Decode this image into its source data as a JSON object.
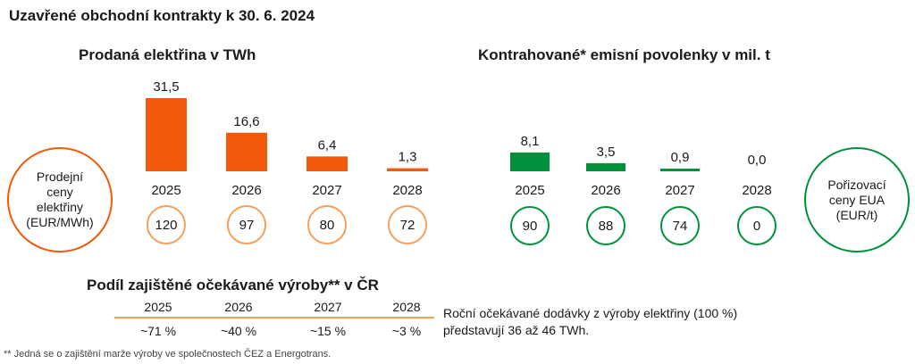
{
  "page_title": "Uzavřené obchodní kontrakty k 30. 6. 2024",
  "colors": {
    "electricity": "#f05a0a",
    "emissions": "#00913a",
    "divider": "#f5a05a"
  },
  "left_bubble": {
    "lines": [
      "Prodejní",
      "ceny",
      "elektřiny",
      "(EUR/MWh)"
    ]
  },
  "right_bubble": {
    "lines": [
      "Pořizovací",
      "ceny EUA",
      "(EUR/t)"
    ]
  },
  "chart_data": [
    {
      "type": "bar",
      "title": "Prodaná elektřina v TWh",
      "categories": [
        "2025",
        "2026",
        "2027",
        "2028"
      ],
      "values": [
        31.5,
        16.6,
        6.4,
        1.3
      ],
      "value_labels": [
        "31,5",
        "16,6",
        "6,4",
        "1,3"
      ],
      "ylim": [
        0,
        31.5
      ],
      "color": "#f05a0a",
      "prices": [
        "120",
        "97",
        "80",
        "72"
      ]
    },
    {
      "type": "bar",
      "title": "Kontrahované* emisní povolenky v mil. t",
      "categories": [
        "2025",
        "2026",
        "2027",
        "2028"
      ],
      "values": [
        8.1,
        3.5,
        0.9,
        0.0
      ],
      "value_labels": [
        "8,1",
        "3,5",
        "0,9",
        "0,0"
      ],
      "ylim": [
        0,
        31.5
      ],
      "color": "#00913a",
      "prices": [
        "90",
        "88",
        "74",
        "0"
      ]
    }
  ],
  "share": {
    "title": "Podíl zajištěné očekávané výroby** v ČR",
    "years": [
      "2025",
      "2026",
      "2027",
      "2028"
    ],
    "values": [
      "~71 %",
      "~40 %",
      "~15 %",
      "~3 %"
    ]
  },
  "note_lines": [
    "Roční očekávané dodávky z výroby elektřiny (100 %)",
    "představují 36 až 46 TWh."
  ],
  "footnote": "** Jedná se o zajištění marže výroby ve společnostech ČEZ a Energotrans."
}
